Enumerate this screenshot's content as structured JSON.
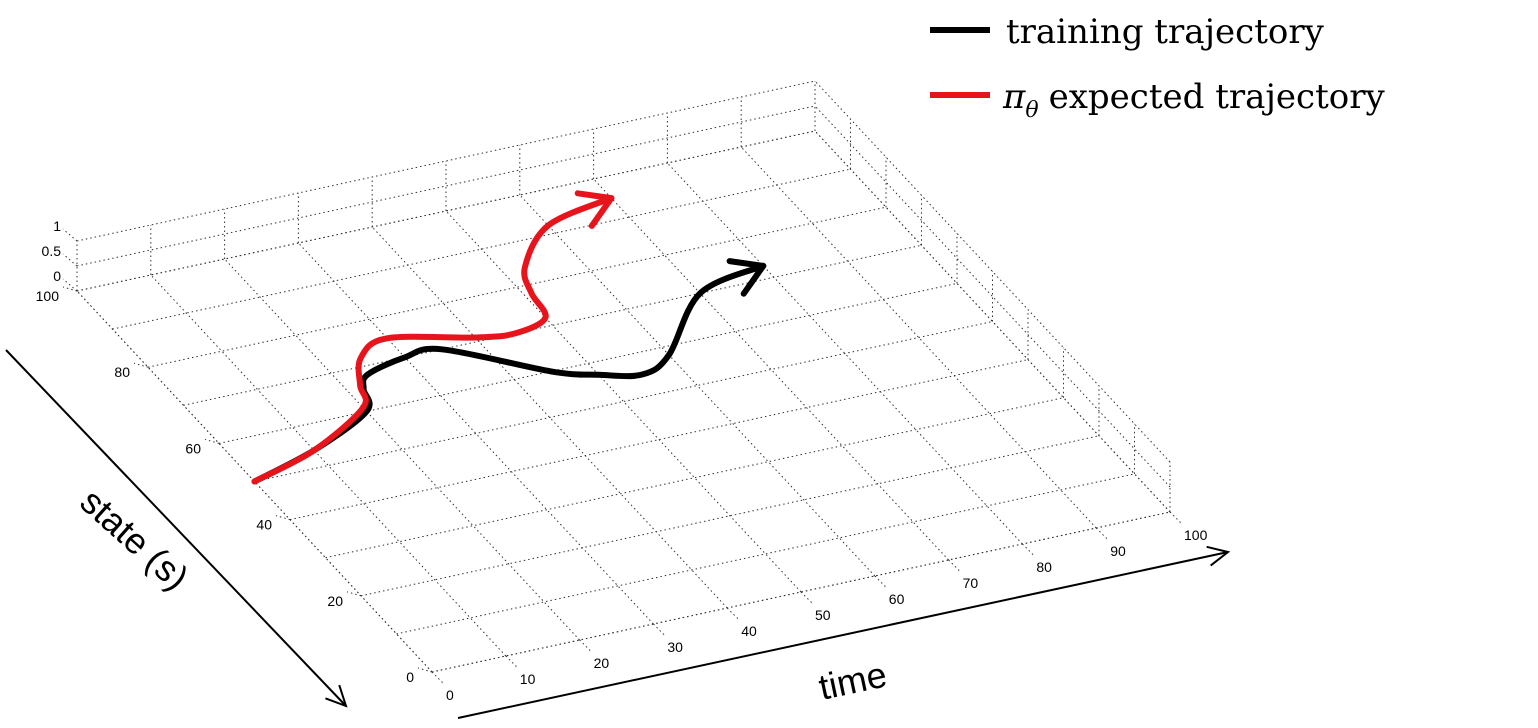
{
  "chart_data": {
    "type": "line",
    "projection": "3d",
    "title": "",
    "xlabel": "time",
    "ylabel": "state (s)",
    "zlabel": "",
    "xlim": [
      0,
      100
    ],
    "ylim": [
      0,
      100
    ],
    "zlim": [
      0,
      1
    ],
    "x_ticks": [
      "0",
      "10",
      "20",
      "30",
      "40",
      "50",
      "60",
      "70",
      "80",
      "90",
      "100"
    ],
    "y_ticks": [
      "0",
      "20",
      "40",
      "60",
      "80",
      "100"
    ],
    "z_ticks": [
      "0",
      "0.5",
      "1"
    ],
    "grid": true,
    "legend_position": "top-right",
    "series": [
      {
        "name": "training trajectory",
        "name_symbol": "",
        "color": "#000000",
        "arrow_end": true,
        "x": [
          0,
          10,
          20,
          22,
          24,
          30,
          35,
          45,
          50,
          55,
          60,
          70,
          80
        ],
        "y": [
          50,
          54,
          60,
          65,
          68,
          70,
          70,
          60,
          57,
          55,
          58,
          70,
          73
        ]
      },
      {
        "name": "expected trajectory",
        "name_symbol": "π",
        "name_subscript": "θ",
        "color": "#e8141c",
        "arrow_end": true,
        "x": [
          0,
          10,
          20,
          22,
          25,
          30,
          40,
          45,
          50,
          51,
          53,
          60,
          70
        ],
        "y": [
          50,
          54,
          61,
          66,
          72,
          75,
          71,
          70,
          72,
          78,
          84,
          92,
          95
        ]
      }
    ]
  }
}
